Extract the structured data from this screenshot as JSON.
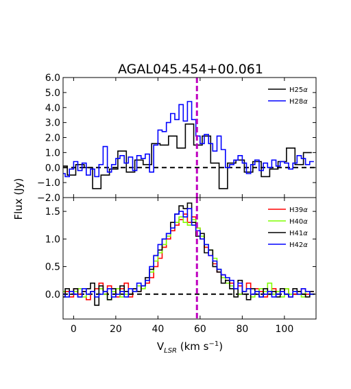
{
  "chart_data": {
    "type": "line",
    "drawstyle": "steps-mid",
    "title": "AGAL045.454+00.061",
    "xlabel_main": "V",
    "xlabel_sub": "LSR",
    "xlabel_rest": " (km s",
    "xlabel_exp": "−1",
    "xlabel_close": ")",
    "ylabel": "Flux (Jy)",
    "xlim": [
      -5,
      115
    ],
    "xticks": [
      0,
      20,
      40,
      60,
      80,
      100
    ],
    "xticklabels": [
      "0",
      "20",
      "40",
      "60",
      "80",
      "100"
    ],
    "vline": {
      "x": 58.5,
      "color": "#bf00bf"
    },
    "zero_line_color": "#000000",
    "panels": [
      {
        "ylim": [
          -2.0,
          6.0
        ],
        "yticks": [
          -2,
          -1,
          0,
          1,
          2,
          3,
          4,
          5,
          6
        ],
        "yticklabels": [
          "−2.0",
          "−1.0",
          "0.0",
          "1.0",
          "2.0",
          "3.0",
          "4.0",
          "5.0",
          "6.0"
        ],
        "legend_position": "top-right",
        "series": [
          {
            "name": "H25",
            "greek": "α",
            "color": "#000000",
            "step": 4,
            "x": [
              -5,
              -1,
              3,
              7,
              11,
              15,
              19,
              23,
              27,
              31,
              35,
              39,
              43,
              47,
              51,
              55,
              59,
              63,
              67,
              71,
              75,
              79,
              83,
              87,
              91,
              95,
              99,
              103,
              107,
              111
            ],
            "y": [
              0.1,
              -0.5,
              0.2,
              0.0,
              -1.4,
              -0.5,
              -0.1,
              1.1,
              -0.3,
              0.5,
              0.2,
              1.6,
              1.5,
              2.1,
              1.3,
              2.9,
              1.5,
              2.1,
              0.3,
              -1.4,
              0.3,
              0.5,
              -0.3,
              0.4,
              -0.6,
              -0.1,
              0.4,
              1.3,
              0.2,
              1.0
            ]
          },
          {
            "name": "H28",
            "greek": "α",
            "color": "#0000ff",
            "step": 2,
            "x": [
              -5,
              -3,
              -1,
              1,
              3,
              5,
              7,
              9,
              11,
              13,
              15,
              17,
              19,
              21,
              23,
              25,
              27,
              29,
              31,
              33,
              35,
              37,
              39,
              41,
              43,
              45,
              47,
              49,
              51,
              53,
              55,
              57,
              59,
              61,
              63,
              65,
              67,
              69,
              71,
              73,
              75,
              77,
              79,
              81,
              83,
              85,
              87,
              89,
              91,
              93,
              95,
              97,
              99,
              101,
              103,
              105,
              107,
              109,
              111,
              113
            ],
            "y": [
              -0.4,
              -0.6,
              -0.1,
              0.4,
              -0.2,
              0.3,
              -0.5,
              -0.1,
              -0.6,
              0.2,
              1.4,
              -0.3,
              0.2,
              0.6,
              0.8,
              0.3,
              0.7,
              -0.2,
              0.8,
              0.6,
              0.9,
              -0.3,
              1.5,
              2.5,
              2.4,
              3.0,
              3.6,
              3.2,
              4.2,
              3.1,
              4.4,
              3.2,
              2.1,
              1.6,
              2.2,
              1.6,
              1.1,
              2.1,
              1.2,
              0.0,
              0.2,
              0.5,
              0.8,
              0.3,
              -0.4,
              0.2,
              0.5,
              -0.2,
              0.3,
              0.0,
              0.5,
              0.1,
              0.4,
              0.3,
              -0.1,
              0.3,
              0.8,
              0.6,
              0.2,
              0.4
            ]
          }
        ]
      },
      {
        "ylim": [
          -0.45,
          1.75
        ],
        "yticks": [
          0.0,
          0.5,
          1.0,
          1.5
        ],
        "yticklabels": [
          "0.0",
          "0.5",
          "1.0",
          "1.5"
        ],
        "legend_position": "top-right",
        "series": [
          {
            "name": "H39",
            "greek": "α",
            "color": "#ff0000",
            "step": 2,
            "x": [
              -5,
              -3,
              -1,
              1,
              3,
              5,
              7,
              9,
              11,
              13,
              15,
              17,
              19,
              21,
              23,
              25,
              27,
              29,
              31,
              33,
              35,
              37,
              39,
              41,
              43,
              45,
              47,
              49,
              51,
              53,
              55,
              57,
              59,
              61,
              63,
              65,
              67,
              69,
              71,
              73,
              75,
              77,
              79,
              81,
              83,
              85,
              87,
              89,
              91,
              93,
              95,
              97,
              99,
              101,
              103,
              105,
              107,
              109,
              111,
              113
            ],
            "y": [
              0.0,
              0.05,
              -0.05,
              0.1,
              0.0,
              0.05,
              -0.1,
              0.05,
              0.1,
              0.2,
              0.0,
              0.15,
              0.05,
              -0.05,
              0.1,
              0.2,
              -0.05,
              0.1,
              0.05,
              0.15,
              0.2,
              0.3,
              0.5,
              0.65,
              0.85,
              1.0,
              1.15,
              1.25,
              1.35,
              1.45,
              1.3,
              1.4,
              1.2,
              1.0,
              0.85,
              0.7,
              0.55,
              0.4,
              0.35,
              0.25,
              0.2,
              0.1,
              0.15,
              0.05,
              0.2,
              0.0,
              0.1,
              0.05,
              -0.05,
              0.05,
              0.1,
              0.0,
              0.05,
              0.1,
              -0.05,
              0.0,
              0.05,
              0.1,
              0.0,
              0.05
            ]
          },
          {
            "name": "H40",
            "greek": "α",
            "color": "#7fff00",
            "step": 2,
            "x": [
              -5,
              -3,
              -1,
              1,
              3,
              5,
              7,
              9,
              11,
              13,
              15,
              17,
              19,
              21,
              23,
              25,
              27,
              29,
              31,
              33,
              35,
              37,
              39,
              41,
              43,
              45,
              47,
              49,
              51,
              53,
              55,
              57,
              59,
              61,
              63,
              65,
              67,
              69,
              71,
              73,
              75,
              77,
              79,
              81,
              83,
              85,
              87,
              89,
              91,
              93,
              95,
              97,
              99,
              101,
              103,
              105,
              107,
              109,
              111,
              113
            ],
            "y": [
              0.05,
              -0.05,
              0.0,
              0.05,
              0.1,
              -0.05,
              0.0,
              0.05,
              -0.05,
              0.1,
              0.0,
              -0.1,
              0.05,
              0.1,
              -0.05,
              0.0,
              0.1,
              0.05,
              0.15,
              0.1,
              0.25,
              0.4,
              0.6,
              0.75,
              0.9,
              1.05,
              1.2,
              1.3,
              1.4,
              1.3,
              1.25,
              1.35,
              1.2,
              1.05,
              0.9,
              0.8,
              0.65,
              0.45,
              0.3,
              0.2,
              0.15,
              0.1,
              0.0,
              0.05,
              0.1,
              -0.05,
              0.0,
              0.1,
              0.05,
              0.2,
              0.0,
              0.05,
              -0.05,
              0.1,
              0.0,
              0.05,
              0.0,
              -0.05,
              0.05,
              0.0
            ]
          },
          {
            "name": "H41",
            "greek": "α",
            "color": "#000000",
            "step": 2,
            "x": [
              -5,
              -3,
              -1,
              1,
              3,
              5,
              7,
              9,
              11,
              13,
              15,
              17,
              19,
              21,
              23,
              25,
              27,
              29,
              31,
              33,
              35,
              37,
              39,
              41,
              43,
              45,
              47,
              49,
              51,
              53,
              55,
              57,
              59,
              61,
              63,
              65,
              67,
              69,
              71,
              73,
              75,
              77,
              79,
              81,
              83,
              85,
              87,
              89,
              91,
              93,
              95,
              97,
              99,
              101,
              103,
              105,
              107,
              109,
              111,
              113
            ],
            "y": [
              -0.05,
              0.1,
              0.0,
              0.1,
              -0.05,
              0.05,
              0.1,
              0.2,
              -0.2,
              0.15,
              0.05,
              -0.1,
              0.1,
              0.0,
              0.15,
              0.05,
              0.0,
              0.1,
              0.05,
              0.15,
              0.3,
              0.45,
              0.7,
              0.8,
              1.0,
              1.1,
              1.3,
              1.45,
              1.6,
              1.55,
              1.65,
              1.3,
              1.05,
              1.1,
              0.75,
              0.8,
              0.5,
              0.4,
              0.2,
              0.25,
              0.1,
              -0.05,
              0.25,
              0.0,
              -0.1,
              0.1,
              0.0,
              -0.05,
              0.1,
              0.0,
              0.05,
              -0.05,
              0.1,
              0.0,
              -0.05,
              0.1,
              0.05,
              0.0,
              -0.05,
              0.05
            ]
          },
          {
            "name": "H42",
            "greek": "α",
            "color": "#0000ff",
            "step": 2,
            "x": [
              -5,
              -3,
              -1,
              1,
              3,
              5,
              7,
              9,
              11,
              13,
              15,
              17,
              19,
              21,
              23,
              25,
              27,
              29,
              31,
              33,
              35,
              37,
              39,
              41,
              43,
              45,
              47,
              49,
              51,
              53,
              55,
              57,
              59,
              61,
              63,
              65,
              67,
              69,
              71,
              73,
              75,
              77,
              79,
              81,
              83,
              85,
              87,
              89,
              91,
              93,
              95,
              97,
              99,
              101,
              103,
              105,
              107,
              109,
              111,
              113
            ],
            "y": [
              0.0,
              -0.05,
              0.05,
              0.0,
              -0.05,
              0.1,
              0.0,
              0.05,
              -0.05,
              0.0,
              0.05,
              0.1,
              -0.05,
              0.0,
              0.05,
              -0.05,
              0.1,
              0.05,
              0.2,
              0.15,
              0.25,
              0.5,
              0.7,
              0.9,
              1.0,
              1.1,
              1.2,
              1.45,
              1.5,
              1.4,
              1.55,
              1.25,
              1.15,
              1.0,
              0.9,
              0.7,
              0.6,
              0.45,
              0.35,
              0.3,
              0.25,
              0.1,
              0.2,
              0.05,
              0.1,
              0.0,
              0.05,
              -0.05,
              0.0,
              0.05,
              -0.05,
              0.0,
              0.05,
              0.0,
              -0.05,
              0.05,
              0.0,
              0.1,
              0.05,
              0.0
            ]
          }
        ]
      }
    ]
  }
}
